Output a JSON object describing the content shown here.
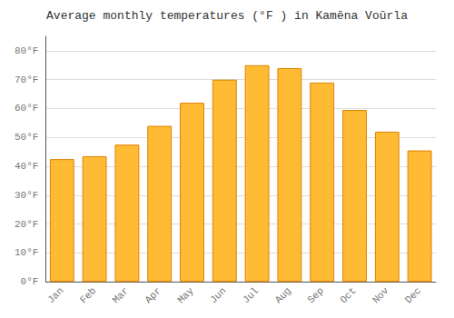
{
  "chart_data": {
    "type": "bar",
    "title": "Average monthly temperatures (°F ) in Kamēna Voūrla",
    "categories": [
      "Jan",
      "Feb",
      "Mar",
      "Apr",
      "May",
      "Jun",
      "Jul",
      "Aug",
      "Sep",
      "Oct",
      "Nov",
      "Dec"
    ],
    "values": [
      42.5,
      43.5,
      47.5,
      54,
      62,
      70,
      75,
      74,
      69,
      59.5,
      52,
      45.5
    ],
    "color": "#FFBB33",
    "ylim": [
      0,
      85
    ],
    "yticks": [
      {
        "value": 0,
        "label": "0°F"
      },
      {
        "value": 10,
        "label": "10°F"
      },
      {
        "value": 20,
        "label": "20°F"
      },
      {
        "value": 30,
        "label": "30°F"
      },
      {
        "value": 40,
        "label": "40°F"
      },
      {
        "value": 50,
        "label": "50°F"
      },
      {
        "value": 60,
        "label": "60°F"
      },
      {
        "value": 70,
        "label": "70°F"
      },
      {
        "value": 80,
        "label": "80°F"
      }
    ],
    "grid": true
  }
}
